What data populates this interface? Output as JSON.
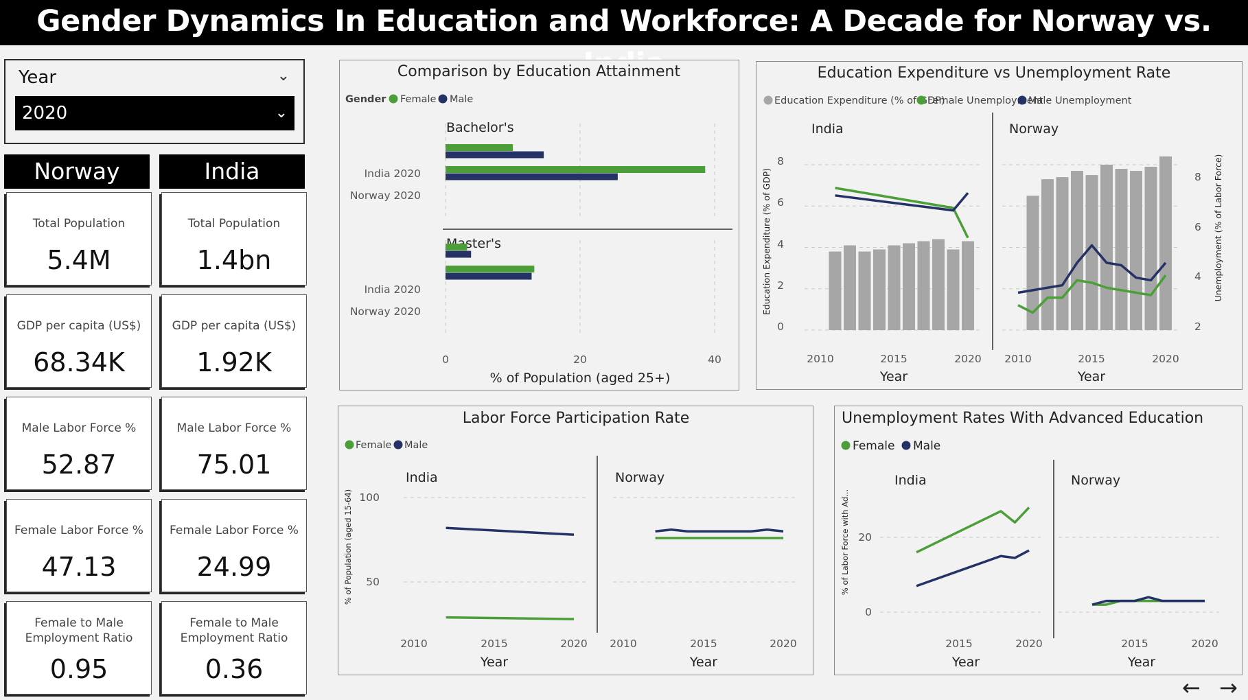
{
  "title": "Gender Dynamics In Education and Workforce: A Decade for Norway vs. India",
  "slicer": {
    "label": "Year",
    "value": "2020"
  },
  "countries": [
    "Norway",
    "India"
  ],
  "kpis": [
    {
      "label": "Total Population",
      "norway": "5.4M",
      "india": "1.4bn"
    },
    {
      "label": "GDP per capita (US$)",
      "norway": "68.34K",
      "india": "1.92K"
    },
    {
      "label": "Male Labor Force %",
      "norway": "52.87",
      "india": "75.01"
    },
    {
      "label": "Female Labor Force %",
      "norway": "47.13",
      "india": "24.99"
    },
    {
      "label": "Female to Male Employment Ratio",
      "norway": "0.95",
      "india": "0.36"
    }
  ],
  "colors": {
    "female": "#4c9f38",
    "male": "#253266",
    "bar": "#a6a6a6",
    "banner": "#000000"
  },
  "charts": {
    "attainment": {
      "title": "Comparison by Education Attainment",
      "legend_title": "Gender",
      "legend": [
        "Female",
        "Male"
      ],
      "groups": [
        "Bachelor's",
        "Master's"
      ],
      "rows": [
        "India 2020",
        "Norway 2020"
      ],
      "xticks": [
        "0",
        "20",
        "40"
      ],
      "xlabel": "% of Population (aged 25+)"
    },
    "expenditure": {
      "title": "Education Expenditure vs Unemployment Rate",
      "legend": [
        "Education Expenditure (% of GDP)",
        "Female Unemployment",
        "Male Unemployment"
      ],
      "panels": [
        "India",
        "Norway"
      ],
      "ylabel_left": "Education Expenditure (% of GDP)",
      "ylabel_right": "Unemployment (% of Labor Force)",
      "yticks_left": [
        "0",
        "2",
        "4",
        "6",
        "8"
      ],
      "yticks_right": [
        "2",
        "4",
        "6",
        "8"
      ],
      "xticks": [
        "2010",
        "2015",
        "2020"
      ],
      "xlabel": "Year"
    },
    "participation": {
      "title": "Labor Force Participation Rate",
      "legend": [
        "Female",
        "Male"
      ],
      "panels": [
        "India",
        "Norway"
      ],
      "ylabel": "% of Population (aged 15-64)",
      "yticks": [
        "50",
        "100"
      ],
      "xticks": [
        "2010",
        "2015",
        "2020"
      ],
      "xlabel": "Year"
    },
    "advanced": {
      "title": "Unemployment Rates With Advanced Education",
      "legend": [
        "Female",
        "Male"
      ],
      "panels": [
        "India",
        "Norway"
      ],
      "ylabel": "% of Labor Force with Ad...",
      "yticks": [
        "0",
        "20"
      ],
      "xticks": [
        "2015",
        "2020"
      ],
      "xlabel": "Year"
    }
  },
  "chart_data": [
    {
      "type": "bar",
      "title": "Comparison by Education Attainment",
      "xlabel": "% of Population (aged 25+)",
      "xlim": [
        0,
        40
      ],
      "facets": [
        {
          "name": "Bachelor's",
          "categories": [
            "India 2020",
            "Norway 2020"
          ],
          "series": [
            {
              "name": "Female",
              "values": [
                10,
                38.6
              ]
            },
            {
              "name": "Male",
              "values": [
                14.6,
                25.6
              ]
            }
          ]
        },
        {
          "name": "Master's",
          "categories": [
            "India 2020",
            "Norway 2020"
          ],
          "series": [
            {
              "name": "Female",
              "values": [
                3.2,
                13.2
              ]
            },
            {
              "name": "Male",
              "values": [
                3.8,
                12.8
              ]
            }
          ]
        }
      ]
    },
    {
      "type": "bar",
      "title": "Education Expenditure vs Unemployment Rate",
      "xlabel": "Year",
      "ylabel": "Education Expenditure (% of GDP)",
      "ylabel_secondary": "Unemployment (% of Labor Force)",
      "ylim": [
        0,
        8
      ],
      "ylim_secondary": [
        2,
        8
      ],
      "facets": [
        {
          "name": "India",
          "x": [
            2011,
            2012,
            2013,
            2014,
            2015,
            2016,
            2017,
            2018,
            2019,
            2020
          ],
          "bars": {
            "name": "Education Expenditure (% of GDP)",
            "values": [
              3.8,
              4.1,
              3.8,
              3.9,
              4.1,
              4.2,
              4.3,
              4.4,
              3.9,
              4.3
            ]
          },
          "lines": [
            {
              "name": "Female Unemployment",
              "x": [
                2011,
                2019,
                2020
              ],
              "values": [
                7.7,
                6.9,
                5.7
              ]
            },
            {
              "name": "Male Unemployment",
              "x": [
                2011,
                2019,
                2020
              ],
              "values": [
                7.4,
                6.8,
                7.5
              ]
            }
          ]
        },
        {
          "name": "Norway",
          "x": [
            2011,
            2012,
            2013,
            2014,
            2015,
            2016,
            2017,
            2018,
            2019,
            2020
          ],
          "bars": {
            "name": "Education Expenditure (% of GDP)",
            "values": [
              6.5,
              7.3,
              7.4,
              7.7,
              7.5,
              8.0,
              7.8,
              7.7,
              7.9,
              8.4
            ]
          },
          "lines": [
            {
              "name": "Female Unemployment",
              "x": [
                2010,
                2011,
                2012,
                2013,
                2014,
                2015,
                2016,
                2017,
                2018,
                2019,
                2020
              ],
              "values": [
                3.0,
                2.7,
                3.3,
                3.3,
                4.0,
                3.9,
                3.7,
                3.6,
                3.5,
                3.4,
                4.2
              ]
            },
            {
              "name": "Male Unemployment",
              "x": [
                2010,
                2011,
                2012,
                2013,
                2014,
                2015,
                2016,
                2017,
                2018,
                2019,
                2020
              ],
              "values": [
                3.5,
                3.6,
                3.7,
                3.8,
                4.7,
                5.4,
                4.7,
                4.6,
                4.1,
                4.0,
                4.7
              ]
            }
          ]
        }
      ]
    },
    {
      "type": "line",
      "title": "Labor Force Participation Rate",
      "xlabel": "Year",
      "ylabel": "% of Population (aged 15-64)",
      "ylim": [
        25,
        105
      ],
      "facets": [
        {
          "name": "India",
          "x": [
            2012,
            2020
          ],
          "series": [
            {
              "name": "Female",
              "values": [
                29,
                28
              ]
            },
            {
              "name": "Male",
              "values": [
                82,
                78
              ]
            }
          ]
        },
        {
          "name": "Norway",
          "x": [
            2012,
            2013,
            2014,
            2015,
            2016,
            2017,
            2018,
            2019,
            2020
          ],
          "series": [
            {
              "name": "Female",
              "values": [
                76,
                76,
                76,
                76,
                76,
                76,
                76,
                76,
                76
              ]
            },
            {
              "name": "Male",
              "values": [
                80,
                81,
                80,
                80,
                80,
                80,
                80,
                81,
                80
              ]
            }
          ]
        }
      ]
    },
    {
      "type": "line",
      "title": "Unemployment Rates With Advanced Education",
      "xlabel": "Year",
      "ylabel": "% of Labor Force with Ad...",
      "ylim": [
        0,
        30
      ],
      "facets": [
        {
          "name": "India",
          "x": [
            2012,
            2018,
            2019,
            2020
          ],
          "series": [
            {
              "name": "Female",
              "values": [
                16,
                27,
                24,
                28
              ]
            },
            {
              "name": "Male",
              "values": [
                7,
                15,
                14.5,
                16.5
              ]
            }
          ]
        },
        {
          "name": "Norway",
          "x": [
            2012,
            2013,
            2014,
            2015,
            2016,
            2017,
            2018,
            2019,
            2020
          ],
          "series": [
            {
              "name": "Female",
              "values": [
                2,
                2,
                3,
                3,
                3,
                3,
                3,
                3,
                3
              ]
            },
            {
              "name": "Male",
              "values": [
                2,
                3,
                3,
                3,
                4,
                3,
                3,
                3,
                3
              ]
            }
          ]
        }
      ]
    }
  ],
  "footer": {
    "prev_icon": "arrow-left-icon",
    "next_icon": "arrow-right-icon"
  }
}
